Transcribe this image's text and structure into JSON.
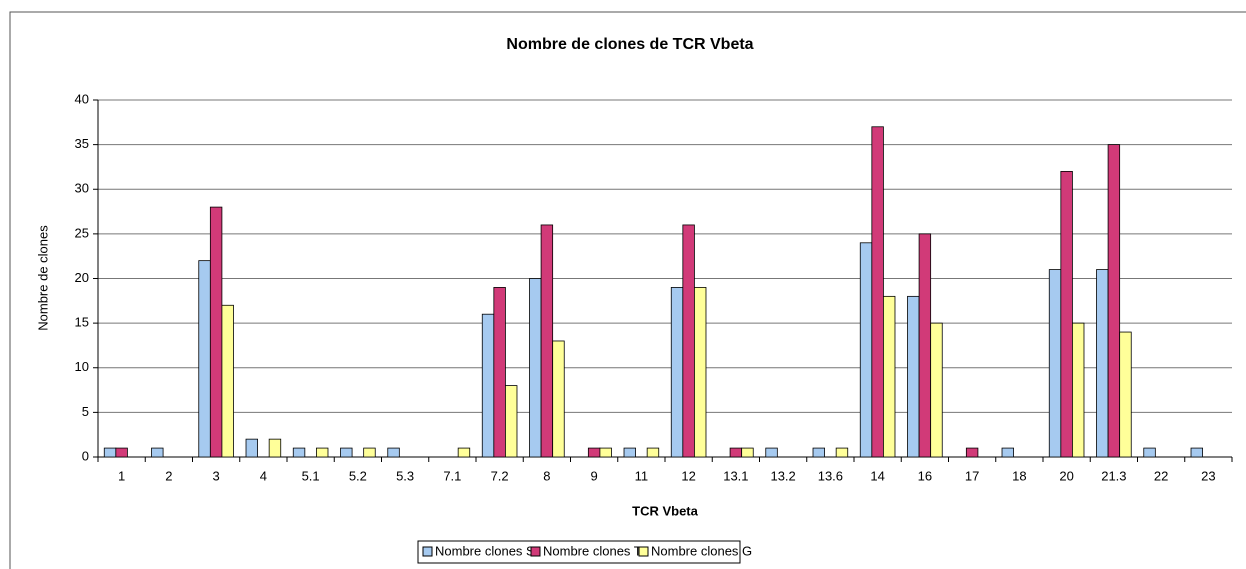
{
  "chart_data": {
    "type": "bar",
    "title": "Nombre de clones de TCR Vbeta",
    "x_label": "TCR Vbeta",
    "y_label": "Nombre de clones",
    "categories": [
      "1",
      "2",
      "3",
      "4",
      "5.1",
      "5.2",
      "5.3",
      "7.1",
      "7.2",
      "8",
      "9",
      "11",
      "12",
      "13.1",
      "13.2",
      "13.6",
      "14",
      "16",
      "17",
      "18",
      "20",
      "21.3",
      "22",
      "23"
    ],
    "series": [
      {
        "name": "Nombre clones S",
        "color": "#a6caf0",
        "values": [
          1,
          1,
          22,
          2,
          1,
          1,
          1,
          0,
          16,
          20,
          0,
          1,
          19,
          0,
          1,
          1,
          24,
          18,
          0,
          1,
          21,
          21,
          1,
          1
        ]
      },
      {
        "name": "Nombre clones T",
        "color": "#d13a78",
        "values": [
          1,
          0,
          28,
          0,
          0,
          0,
          0,
          0,
          19,
          26,
          1,
          0,
          26,
          1,
          0,
          0,
          37,
          25,
          1,
          0,
          32,
          35,
          0,
          0
        ]
      },
      {
        "name": "Nombre clones G",
        "color": "#ffff99",
        "values": [
          0,
          0,
          17,
          2,
          1,
          1,
          0,
          1,
          8,
          13,
          1,
          1,
          19,
          1,
          0,
          1,
          18,
          15,
          0,
          0,
          15,
          14,
          0,
          0
        ]
      }
    ],
    "ylim": [
      0,
      40
    ],
    "yticks": [
      0,
      5,
      10,
      15,
      20,
      25,
      30,
      35,
      40
    ],
    "grid": true,
    "legend": "bottom"
  }
}
